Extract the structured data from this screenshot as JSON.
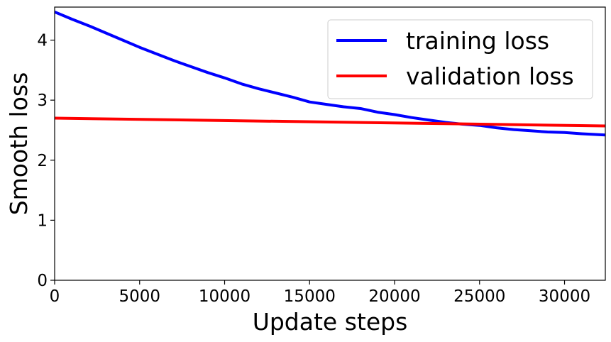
{
  "chart_data": {
    "type": "line",
    "xlabel": "Update steps",
    "ylabel": "Smooth loss",
    "xlim": [
      0,
      32400
    ],
    "ylim": [
      0,
      4.55
    ],
    "xticks": [
      0,
      5000,
      10000,
      15000,
      20000,
      25000,
      30000
    ],
    "yticks": [
      0,
      1,
      2,
      3,
      4
    ],
    "grid": false,
    "legend_position": "top-right",
    "series": [
      {
        "name": "training loss",
        "color": "#0000ff",
        "x": [
          0,
          1000,
          2000,
          3000,
          4000,
          5000,
          6000,
          7000,
          8000,
          9000,
          10000,
          11000,
          12000,
          13000,
          14000,
          15000,
          16000,
          17000,
          18000,
          19000,
          20000,
          21000,
          22000,
          23000,
          24000,
          25000,
          26000,
          27000,
          28000,
          29000,
          30000,
          31000,
          32400
        ],
        "y": [
          4.47,
          4.35,
          4.24,
          4.12,
          4.0,
          3.88,
          3.77,
          3.66,
          3.56,
          3.46,
          3.37,
          3.27,
          3.19,
          3.12,
          3.05,
          2.97,
          2.93,
          2.89,
          2.86,
          2.8,
          2.76,
          2.71,
          2.67,
          2.63,
          2.6,
          2.58,
          2.54,
          2.51,
          2.49,
          2.47,
          2.46,
          2.44,
          2.42
        ]
      },
      {
        "name": "validation loss",
        "color": "#ff0000",
        "x": [
          0,
          32400
        ],
        "y": [
          2.7,
          2.57
        ]
      }
    ]
  }
}
